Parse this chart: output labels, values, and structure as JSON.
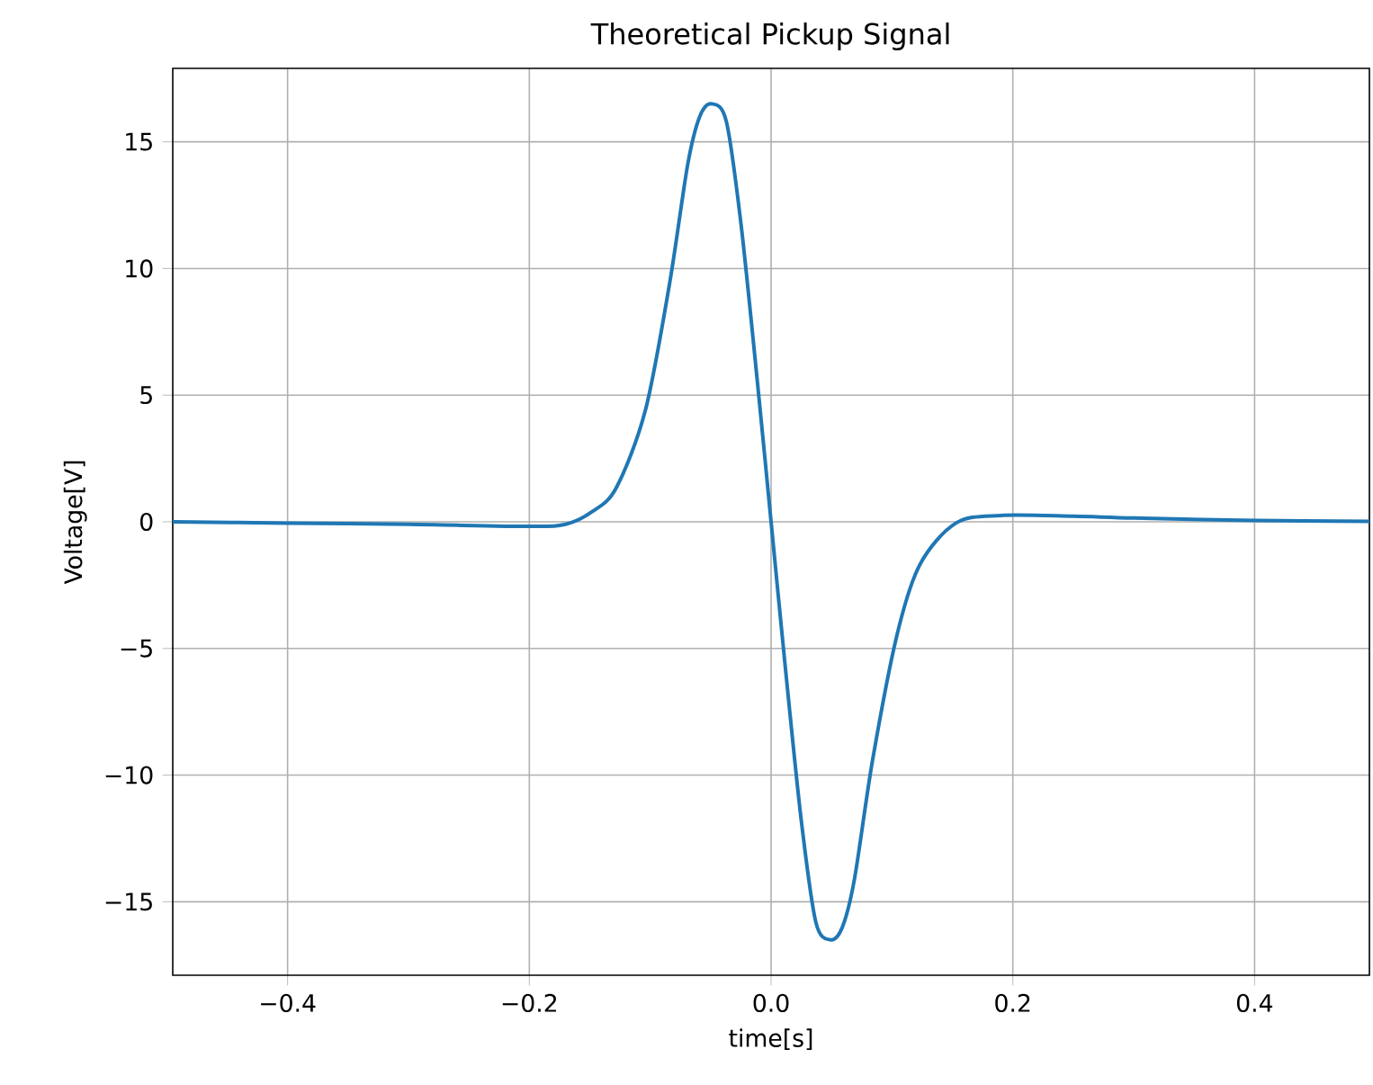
{
  "chart_data": {
    "type": "line",
    "title": "Theoretical Pickup Signal",
    "xlabel": "time[s]",
    "ylabel": "Voltage[V]",
    "x": [
      -0.495,
      -0.4,
      -0.3,
      -0.2,
      -0.17,
      -0.148,
      -0.128,
      -0.104,
      -0.084,
      -0.069,
      -0.059,
      -0.049,
      -0.037,
      -0.025,
      -0.012,
      0,
      0.012,
      0.025,
      0.037,
      0.049,
      0.059,
      0.069,
      0.084,
      0.104,
      0.123,
      0.153,
      0.19,
      0.25,
      0.3,
      0.4,
      0.495
    ],
    "series": [
      {
        "color": "#1f77b4",
        "values": [
          0,
          -0.05,
          -0.1,
          -0.18,
          -0.1,
          0.4,
          1.35,
          4.4,
          9.4,
          14.1,
          16.0,
          16.5,
          15.8,
          11.8,
          5.85,
          0,
          -5.85,
          -11.8,
          -15.8,
          -16.5,
          -16.0,
          -14.1,
          -9.4,
          -4.5,
          -1.7,
          -0.05,
          0.25,
          0.22,
          0.15,
          0.05,
          0.02
        ]
      }
    ],
    "xlim": [
      -0.495,
      0.495
    ],
    "ylim": [
      -17.9,
      17.9
    ],
    "xticks": [
      {
        "value": -0.4,
        "label": "−0.4"
      },
      {
        "value": -0.2,
        "label": "−0.2"
      },
      {
        "value": 0,
        "label": "0.0"
      },
      {
        "value": 0.2,
        "label": "0.2"
      },
      {
        "value": 0.4,
        "label": "0.4"
      }
    ],
    "yticks": [
      {
        "value": -15,
        "label": "−15"
      },
      {
        "value": -10,
        "label": "−10"
      },
      {
        "value": -5,
        "label": "−5"
      },
      0,
      5,
      10,
      15
    ],
    "grid": true,
    "marker": "none",
    "line_style": "solid"
  }
}
